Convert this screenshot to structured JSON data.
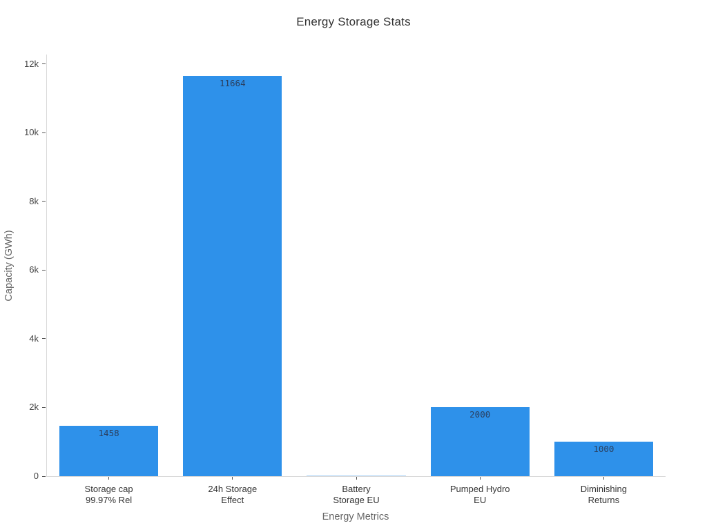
{
  "chart_data": {
    "type": "bar",
    "title": "Energy Storage Stats",
    "xlabel": "Energy Metrics",
    "ylabel": "Capacity (GWh)",
    "categories": [
      "Storage cap\n99.97% Rel",
      "24h Storage\nEffect",
      "Battery\nStorage EU",
      "Pumped Hydro\nEU",
      "Diminishing\nReturns"
    ],
    "values": [
      1458,
      11664,
      1,
      2000,
      1000
    ],
    "value_labels": [
      "1458",
      "11664",
      "",
      "2000",
      "1000"
    ],
    "ylim": [
      0,
      12280
    ],
    "yticks": {
      "values": [
        0,
        2000,
        4000,
        6000,
        8000,
        10000,
        12000
      ],
      "labels": [
        "0",
        "2k",
        "4k",
        "6k",
        "8k",
        "10k",
        "12k"
      ]
    },
    "grid": false,
    "legend": null,
    "bar_width_fraction": 0.8,
    "colors": {
      "bar": "#2e91ea",
      "value_text": "#2a3f5f",
      "axis_line": "#d9d9d9",
      "tick": "#555555",
      "tick_text": "#444444",
      "axis_title_text": "#666666",
      "title_text": "#333333",
      "background": "#ffffff"
    }
  }
}
